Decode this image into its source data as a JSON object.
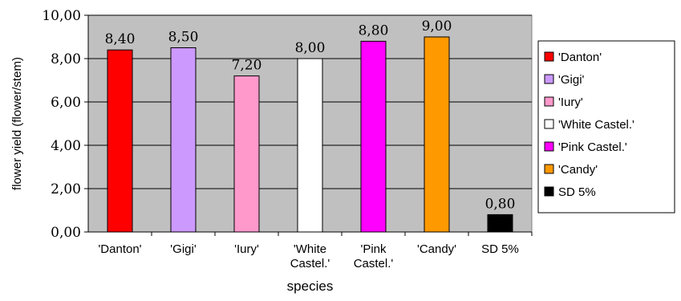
{
  "chart_data": {
    "type": "bar",
    "categories": [
      "'Danton'",
      "'Gigi'",
      "'Iury'",
      "'White Castel.'",
      "'Pink Castel.'",
      "'Candy'",
      "SD 5%"
    ],
    "category_ticks": [
      [
        "'Danton'"
      ],
      [
        "'Gigi'"
      ],
      [
        "'Iury'"
      ],
      [
        "'White",
        "Castel.'"
      ],
      [
        "'Pink",
        "Castel.'"
      ],
      [
        "'Candy'"
      ],
      [
        "SD 5%"
      ]
    ],
    "values": [
      8.4,
      8.5,
      7.2,
      8.0,
      8.8,
      9.0,
      0.8
    ],
    "data_labels": [
      "8,40",
      "8,50",
      "7,20",
      "8,00",
      "8,80",
      "9,00",
      "0,80"
    ],
    "colors": [
      "#ff0000",
      "#cc99ff",
      "#ff99cc",
      "#ffffff",
      "#ff00ff",
      "#ff9900",
      "#000000"
    ],
    "ylabel": "flower yield (flower/stem)",
    "xlabel": "species",
    "ylim": [
      0,
      10
    ],
    "yticks": [
      0,
      2,
      4,
      6,
      8,
      10
    ],
    "ytick_labels": [
      "0,00",
      "2,00",
      "4,00",
      "6,00",
      "8,00",
      "10,00"
    ],
    "grid": true,
    "plot_background": "#c0c0c0",
    "legend": {
      "position": "right",
      "entries": [
        "'Danton'",
        "'Gigi'",
        "'Iury'",
        "'White Castel.'",
        "'Pink Castel.'",
        "'Candy'",
        "SD 5%"
      ]
    }
  }
}
